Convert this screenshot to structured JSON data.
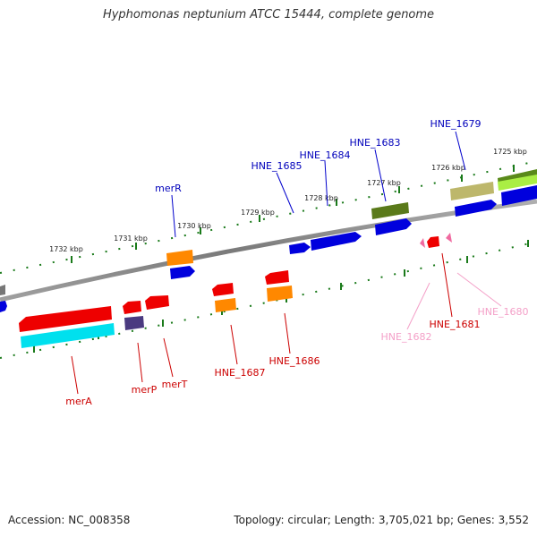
{
  "title": "Hyphomonas neptunium ATCC 15444, complete genome",
  "footer": {
    "accession": "Accession: NC_008358",
    "summary": "Topology: circular; Length: 3,705,021 bp; Genes: 3,552"
  },
  "colors": {
    "backbone": "#888888",
    "ticks": "#1a7a1a",
    "ruler_text": "#222222",
    "label_top": "#0000bb",
    "label_bottom": "#cc0000",
    "label_faint": "#f4a0c8"
  },
  "ruler": {
    "kbp_labels": [
      "1725 kbp",
      "1726 kbp",
      "1727 kbp",
      "1728 kbp",
      "1729 kbp",
      "1730 kbp",
      "1731 kbp",
      "1732 kbp"
    ]
  },
  "gene_labels": {
    "top": [
      "HNE_1679",
      "HNE_1683",
      "HNE_1684",
      "HNE_1685",
      "merR"
    ],
    "bottom": [
      "HNE_1680",
      "HNE_1681",
      "HNE_1682",
      "HNE_1686",
      "HNE_1687",
      "merT",
      "merP",
      "merA"
    ]
  }
}
